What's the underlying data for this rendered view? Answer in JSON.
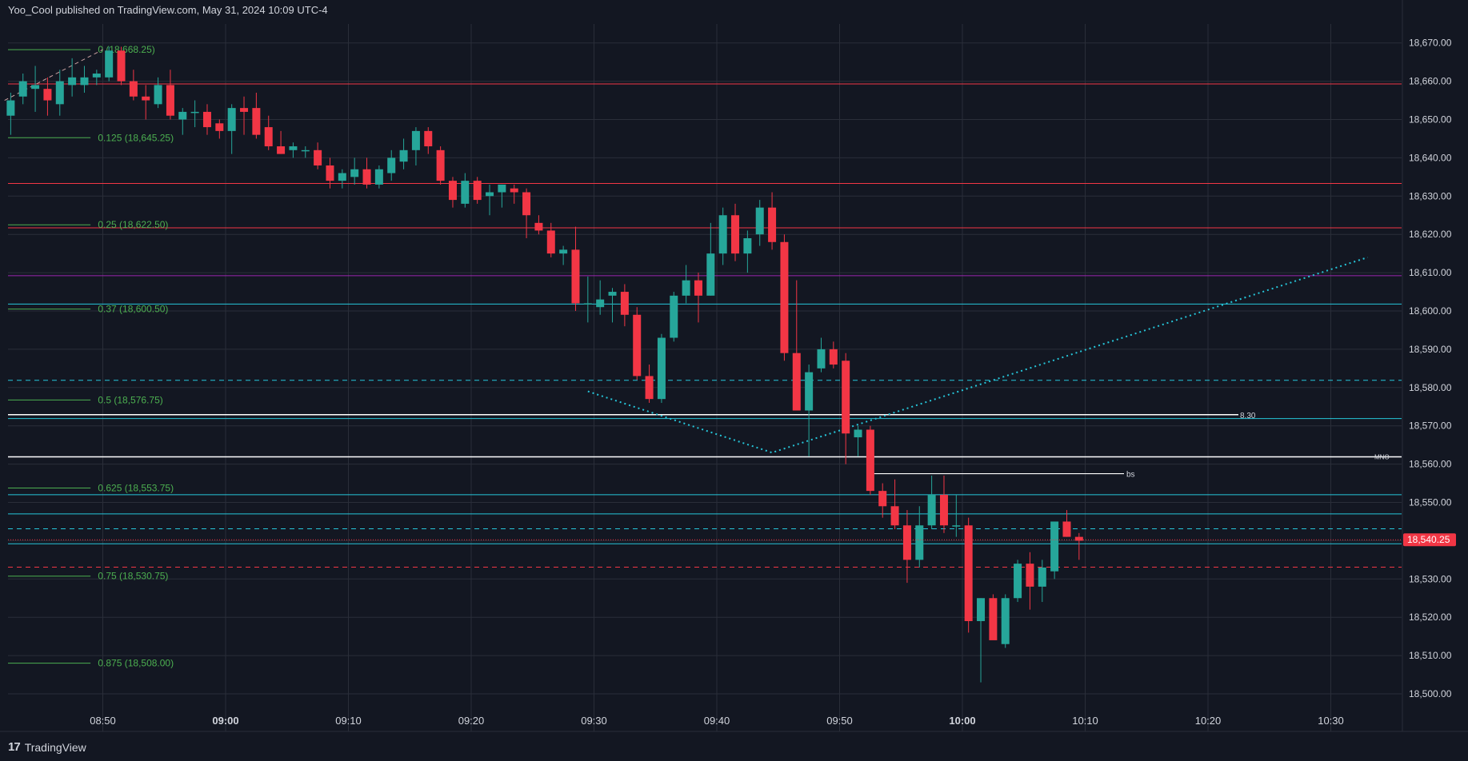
{
  "header": {
    "text": "Yoo_Cool published on TradingView.com, May 31, 2024 10:09 UTC-4"
  },
  "footer": {
    "brand": "TradingView",
    "logo": "tradingview-logo-icon"
  },
  "colors": {
    "background": "#131722",
    "grid": "#2a2e39",
    "up": "#26a69a",
    "down": "#f23645",
    "fib": "#4caf50",
    "red_line": "#f23645",
    "purple_line": "#9c27b0",
    "teal_line": "#26c6da",
    "white_line": "#ffffff",
    "price_badge": "#f23645"
  },
  "chart_data": {
    "type": "candlestick",
    "interval_minutes": 1,
    "ylim": [
      18497,
      18672
    ],
    "y_ticks": [
      "18,500.00",
      "18,510.00",
      "18,520.00",
      "18,530.00",
      "18,540.00",
      "18,550.00",
      "18,560.00",
      "18,570.00",
      "18,580.00",
      "18,590.00",
      "18,600.00",
      "18,610.00",
      "18,620.00",
      "18,630.00",
      "18,640.00",
      "18,650.00",
      "18,660.00",
      "18,670.00"
    ],
    "x_ticks": [
      {
        "label": "08:50",
        "bold": false
      },
      {
        "label": "09:00",
        "bold": true
      },
      {
        "label": "09:10",
        "bold": false
      },
      {
        "label": "09:20",
        "bold": false
      },
      {
        "label": "09:30",
        "bold": false
      },
      {
        "label": "09:40",
        "bold": false
      },
      {
        "label": "09:50",
        "bold": false
      },
      {
        "label": "10:00",
        "bold": true
      },
      {
        "label": "10:10",
        "bold": false
      },
      {
        "label": "10:20",
        "bold": false
      },
      {
        "label": "10:30",
        "bold": false
      }
    ],
    "x_tick_minutes": [
      -10,
      0,
      10,
      20,
      30,
      40,
      50,
      60,
      70,
      80,
      90
    ],
    "candles": [
      {
        "t": -17.5,
        "o": 18651,
        "h": 18657,
        "l": 18646,
        "c": 18655
      },
      {
        "t": -16.5,
        "o": 18656,
        "h": 18662,
        "l": 18654,
        "c": 18660
      },
      {
        "t": -15.5,
        "o": 18658,
        "h": 18664,
        "l": 18652,
        "c": 18659
      },
      {
        "t": -14.5,
        "o": 18658,
        "h": 18661,
        "l": 18651,
        "c": 18655
      },
      {
        "t": -13.5,
        "o": 18654,
        "h": 18663,
        "l": 18651,
        "c": 18660
      },
      {
        "t": -12.5,
        "o": 18659,
        "h": 18666,
        "l": 18656,
        "c": 18661
      },
      {
        "t": -11.5,
        "o": 18659,
        "h": 18664,
        "l": 18657,
        "c": 18661
      },
      {
        "t": -10.5,
        "o": 18661,
        "h": 18663,
        "l": 18659,
        "c": 18662
      },
      {
        "t": -9.5,
        "o": 18661,
        "h": 18669,
        "l": 18660,
        "c": 18668
      },
      {
        "t": -8.5,
        "o": 18668,
        "h": 18669,
        "l": 18659,
        "c": 18660
      },
      {
        "t": -7.5,
        "o": 18660,
        "h": 18663,
        "l": 18655,
        "c": 18656
      },
      {
        "t": -6.5,
        "o": 18656,
        "h": 18659,
        "l": 18650,
        "c": 18655
      },
      {
        "t": -5.5,
        "o": 18654,
        "h": 18661,
        "l": 18653,
        "c": 18659
      },
      {
        "t": -4.5,
        "o": 18659,
        "h": 18663,
        "l": 18650,
        "c": 18651
      },
      {
        "t": -3.5,
        "o": 18650,
        "h": 18653,
        "l": 18646,
        "c": 18652
      },
      {
        "t": -2.5,
        "o": 18652,
        "h": 18655,
        "l": 18648,
        "c": 18652
      },
      {
        "t": -1.5,
        "o": 18652,
        "h": 18654,
        "l": 18646,
        "c": 18648
      },
      {
        "t": -0.5,
        "o": 18649,
        "h": 18650,
        "l": 18645,
        "c": 18647
      },
      {
        "t": 0.5,
        "o": 18647,
        "h": 18654,
        "l": 18641,
        "c": 18653
      },
      {
        "t": 1.5,
        "o": 18653,
        "h": 18656,
        "l": 18646,
        "c": 18652
      },
      {
        "t": 2.5,
        "o": 18653,
        "h": 18657,
        "l": 18645,
        "c": 18646
      },
      {
        "t": 3.5,
        "o": 18648,
        "h": 18651,
        "l": 18642,
        "c": 18643
      },
      {
        "t": 4.5,
        "o": 18643,
        "h": 18647,
        "l": 18641,
        "c": 18641
      },
      {
        "t": 5.5,
        "o": 18642,
        "h": 18644,
        "l": 18640,
        "c": 18643
      },
      {
        "t": 6.5,
        "o": 18642,
        "h": 18643,
        "l": 18640,
        "c": 18642
      },
      {
        "t": 7.5,
        "o": 18642,
        "h": 18644,
        "l": 18637,
        "c": 18638
      },
      {
        "t": 8.5,
        "o": 18638,
        "h": 18640,
        "l": 18632,
        "c": 18634
      },
      {
        "t": 9.5,
        "o": 18634,
        "h": 18637,
        "l": 18632,
        "c": 18636
      },
      {
        "t": 10.5,
        "o": 18635,
        "h": 18640,
        "l": 18633,
        "c": 18637
      },
      {
        "t": 11.5,
        "o": 18637,
        "h": 18640,
        "l": 18632,
        "c": 18633
      },
      {
        "t": 12.5,
        "o": 18633,
        "h": 18638,
        "l": 18632,
        "c": 18637
      },
      {
        "t": 13.5,
        "o": 18636,
        "h": 18642,
        "l": 18634,
        "c": 18640
      },
      {
        "t": 14.5,
        "o": 18639,
        "h": 18645,
        "l": 18637,
        "c": 18642
      },
      {
        "t": 15.5,
        "o": 18642,
        "h": 18648,
        "l": 18638,
        "c": 18647
      },
      {
        "t": 16.5,
        "o": 18647,
        "h": 18648,
        "l": 18641,
        "c": 18643
      },
      {
        "t": 17.5,
        "o": 18642,
        "h": 18643,
        "l": 18633,
        "c": 18634
      },
      {
        "t": 18.5,
        "o": 18634,
        "h": 18635,
        "l": 18627,
        "c": 18629
      },
      {
        "t": 19.5,
        "o": 18628,
        "h": 18636,
        "l": 18627,
        "c": 18634
      },
      {
        "t": 20.5,
        "o": 18634,
        "h": 18635,
        "l": 18628,
        "c": 18629
      },
      {
        "t": 21.5,
        "o": 18630,
        "h": 18633,
        "l": 18625,
        "c": 18631
      },
      {
        "t": 22.5,
        "o": 18631,
        "h": 18633,
        "l": 18627,
        "c": 18633
      },
      {
        "t": 23.5,
        "o": 18632,
        "h": 18633,
        "l": 18628,
        "c": 18631
      },
      {
        "t": 24.5,
        "o": 18631,
        "h": 18632,
        "l": 18619,
        "c": 18625
      },
      {
        "t": 25.5,
        "o": 18623,
        "h": 18625,
        "l": 18620,
        "c": 18621
      },
      {
        "t": 26.5,
        "o": 18621,
        "h": 18623,
        "l": 18614,
        "c": 18615
      },
      {
        "t": 27.5,
        "o": 18615,
        "h": 18617,
        "l": 18612,
        "c": 18616
      },
      {
        "t": 28.5,
        "o": 18616,
        "h": 18622,
        "l": 18600,
        "c": 18602
      },
      {
        "t": 29.5,
        "o": 18602,
        "h": 18609,
        "l": 18597,
        "c": 18602
      },
      {
        "t": 30.5,
        "o": 18601,
        "h": 18608,
        "l": 18599,
        "c": 18603
      },
      {
        "t": 31.5,
        "o": 18604,
        "h": 18606,
        "l": 18597,
        "c": 18605
      },
      {
        "t": 32.5,
        "o": 18605,
        "h": 18607,
        "l": 18596,
        "c": 18599
      },
      {
        "t": 33.5,
        "o": 18599,
        "h": 18601,
        "l": 18582,
        "c": 18583
      },
      {
        "t": 34.5,
        "o": 18583,
        "h": 18586,
        "l": 18576,
        "c": 18577
      },
      {
        "t": 35.5,
        "o": 18577,
        "h": 18594,
        "l": 18576,
        "c": 18593
      },
      {
        "t": 36.5,
        "o": 18593,
        "h": 18605,
        "l": 18592,
        "c": 18604
      },
      {
        "t": 37.5,
        "o": 18604,
        "h": 18612,
        "l": 18602,
        "c": 18608
      },
      {
        "t": 38.5,
        "o": 18608,
        "h": 18610,
        "l": 18597,
        "c": 18604
      },
      {
        "t": 39.5,
        "o": 18604,
        "h": 18623,
        "l": 18604,
        "c": 18615
      },
      {
        "t": 40.5,
        "o": 18615,
        "h": 18627,
        "l": 18612,
        "c": 18625
      },
      {
        "t": 41.5,
        "o": 18625,
        "h": 18628,
        "l": 18613,
        "c": 18615
      },
      {
        "t": 42.5,
        "o": 18615,
        "h": 18621,
        "l": 18610,
        "c": 18619
      },
      {
        "t": 43.5,
        "o": 18620,
        "h": 18629,
        "l": 18617,
        "c": 18627
      },
      {
        "t": 44.5,
        "o": 18627,
        "h": 18631,
        "l": 18616,
        "c": 18618
      },
      {
        "t": 45.5,
        "o": 18618,
        "h": 18620,
        "l": 18587,
        "c": 18589
      },
      {
        "t": 46.5,
        "o": 18589,
        "h": 18608,
        "l": 18574,
        "c": 18574
      },
      {
        "t": 47.5,
        "o": 18574,
        "h": 18586,
        "l": 18562,
        "c": 18584
      },
      {
        "t": 48.5,
        "o": 18585,
        "h": 18593,
        "l": 18584,
        "c": 18590
      },
      {
        "t": 49.5,
        "o": 18590,
        "h": 18592,
        "l": 18585,
        "c": 18586
      },
      {
        "t": 50.5,
        "o": 18587,
        "h": 18589,
        "l": 18560,
        "c": 18568
      },
      {
        "t": 51.5,
        "o": 18567,
        "h": 18570,
        "l": 18562,
        "c": 18569
      },
      {
        "t": 52.5,
        "o": 18569,
        "h": 18570,
        "l": 18552,
        "c": 18553
      },
      {
        "t": 53.5,
        "o": 18553,
        "h": 18555,
        "l": 18546,
        "c": 18549
      },
      {
        "t": 54.5,
        "o": 18549,
        "h": 18556,
        "l": 18543,
        "c": 18544
      },
      {
        "t": 55.5,
        "o": 18544,
        "h": 18548,
        "l": 18529,
        "c": 18535
      },
      {
        "t": 56.5,
        "o": 18535,
        "h": 18549,
        "l": 18533,
        "c": 18544
      },
      {
        "t": 57.5,
        "o": 18544,
        "h": 18557,
        "l": 18543,
        "c": 18552
      },
      {
        "t": 58.5,
        "o": 18552,
        "h": 18557,
        "l": 18542,
        "c": 18544
      },
      {
        "t": 59.5,
        "o": 18544,
        "h": 18552,
        "l": 18541,
        "c": 18544
      },
      {
        "t": 60.5,
        "o": 18544,
        "h": 18546,
        "l": 18516,
        "c": 18519
      },
      {
        "t": 61.5,
        "o": 18519,
        "h": 18525,
        "l": 18503,
        "c": 18525
      },
      {
        "t": 62.5,
        "o": 18525,
        "h": 18526,
        "l": 18515,
        "c": 18514
      },
      {
        "t": 63.5,
        "o": 18513,
        "h": 18526,
        "l": 18512,
        "c": 18525
      },
      {
        "t": 64.5,
        "o": 18525,
        "h": 18535,
        "l": 18524,
        "c": 18534
      },
      {
        "t": 65.5,
        "o": 18534,
        "h": 18537,
        "l": 18522,
        "c": 18528
      },
      {
        "t": 66.5,
        "o": 18528,
        "h": 18535,
        "l": 18524,
        "c": 18533
      },
      {
        "t": 67.5,
        "o": 18532,
        "h": 18545,
        "l": 18530,
        "c": 18545
      },
      {
        "t": 68.5,
        "o": 18545,
        "h": 18548,
        "l": 18541,
        "c": 18541
      },
      {
        "t": 69.5,
        "o": 18541,
        "h": 18542,
        "l": 18535,
        "c": 18540
      }
    ],
    "fib_levels": [
      {
        "label": "0 (18,668.25)",
        "price": 18668.25
      },
      {
        "label": "0.125 (18,645.25)",
        "price": 18645.25
      },
      {
        "label": "0.25 (18,622.50)",
        "price": 18622.5
      },
      {
        "label": "0.37 (18,600.50)",
        "price": 18600.5
      },
      {
        "label": "0.5 (18,576.75)",
        "price": 18576.75
      },
      {
        "label": "0.625 (18,553.75)",
        "price": 18553.75
      },
      {
        "label": "0.75 (18,530.75)",
        "price": 18530.75
      },
      {
        "label": "0.875 (18,508.00)",
        "price": 18508.0
      }
    ],
    "horizontal_lines": [
      {
        "price": 18659.3,
        "style": "solid",
        "color": "red"
      },
      {
        "price": 18633.3,
        "style": "solid",
        "color": "red"
      },
      {
        "price": 18621.7,
        "style": "solid",
        "color": "red"
      },
      {
        "price": 18609.2,
        "style": "solid",
        "color": "purple"
      },
      {
        "price": 18601.8,
        "style": "solid",
        "color": "teal"
      },
      {
        "price": 18581.9,
        "style": "dashed",
        "color": "teal"
      },
      {
        "price": 18571.9,
        "style": "solid",
        "color": "teal"
      },
      {
        "price": 18561.9,
        "style": "solid",
        "color": "white"
      },
      {
        "price": 18552.0,
        "style": "solid",
        "color": "teal"
      },
      {
        "price": 18547.0,
        "style": "solid",
        "color": "teal"
      },
      {
        "price": 18543.1,
        "style": "dashed",
        "color": "teal"
      },
      {
        "price": 18539.2,
        "style": "solid",
        "color": "teal"
      },
      {
        "price": 18533.1,
        "style": "dashed",
        "color": "red"
      }
    ],
    "annotations": [
      {
        "text": "8.30",
        "kind": "white-ray",
        "price": 18572.9
      },
      {
        "text": "MNO",
        "kind": "label-right",
        "price": 18561.9
      },
      {
        "text": "bs",
        "kind": "white-ray",
        "price": 18557.5
      }
    ],
    "trend_lines": [
      {
        "style": "dotted",
        "color": "teal",
        "points": [
          [
            29.5,
            18579
          ],
          [
            44.5,
            18563
          ],
          [
            93,
            18614
          ]
        ]
      }
    ],
    "current_price": {
      "value": 18540.25,
      "label": "18,540.25"
    }
  }
}
